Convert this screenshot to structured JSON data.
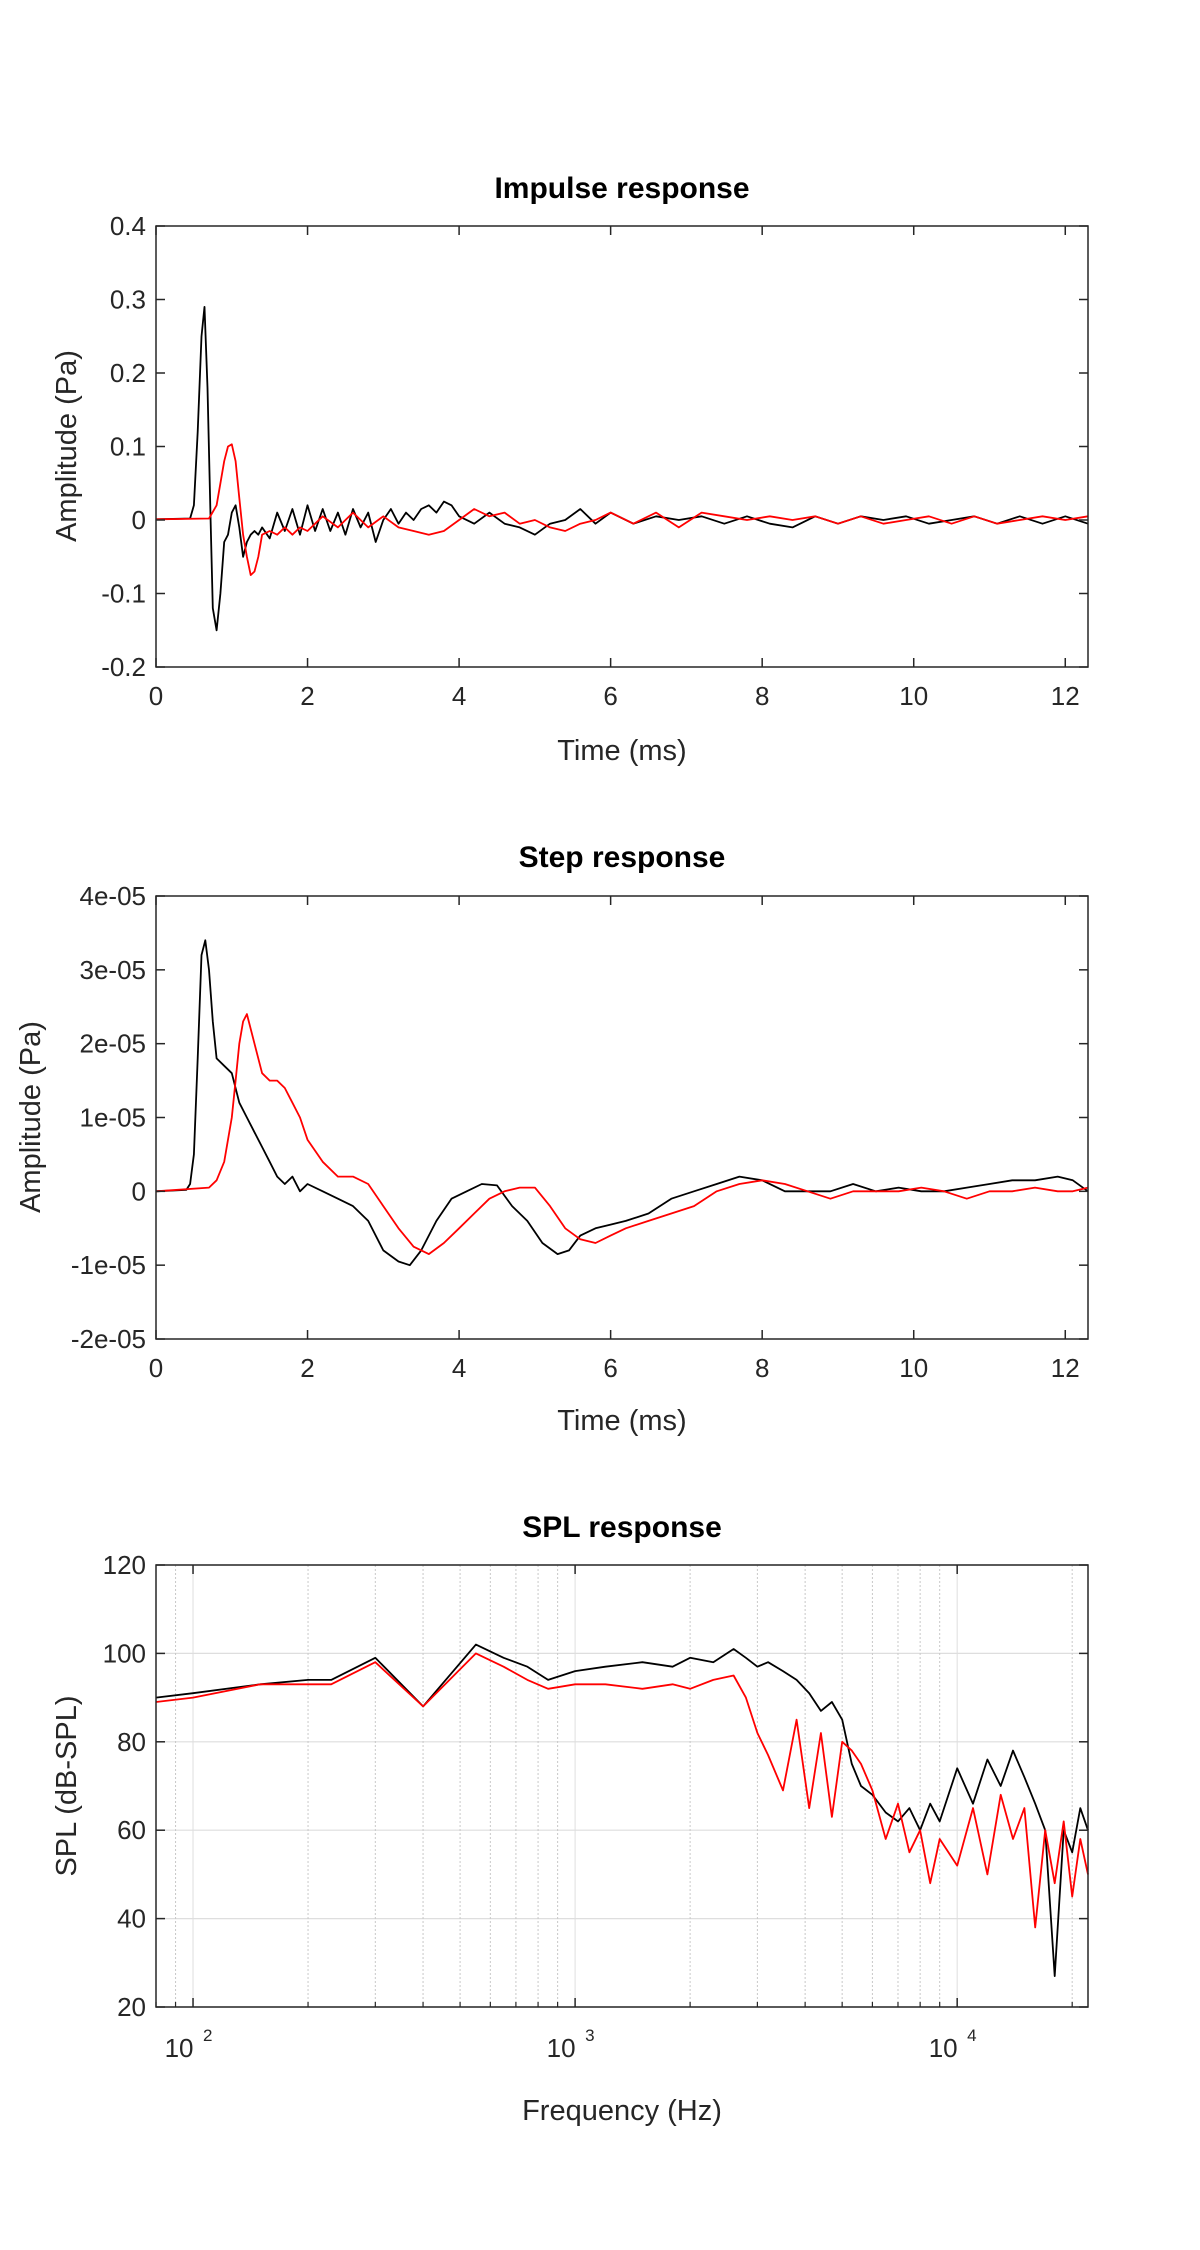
{
  "chart_data": [
    {
      "type": "line",
      "title": "Impulse response",
      "xlabel": "Time (ms)",
      "ylabel": "Amplitude (Pa)",
      "xlim": [
        0,
        12.3
      ],
      "ylim": [
        -0.2,
        0.4
      ],
      "xticks": [
        0,
        2,
        4,
        6,
        8,
        10,
        12
      ],
      "xtick_labels": [
        "0",
        "2",
        "4",
        "6",
        "8",
        "10",
        "12"
      ],
      "yticks": [
        -0.2,
        -0.1,
        0,
        0.1,
        0.2,
        0.3,
        0.4
      ],
      "ytick_labels": [
        "-0.2",
        "-0.1",
        "0",
        "0.1",
        "0.2",
        "0.3",
        "0.4"
      ],
      "grid": false,
      "series": [
        {
          "color": "#000000",
          "x": [
            0,
            0.45,
            0.5,
            0.55,
            0.6,
            0.64,
            0.68,
            0.72,
            0.75,
            0.8,
            0.85,
            0.9,
            0.95,
            1.0,
            1.05,
            1.1,
            1.15,
            1.2,
            1.25,
            1.3,
            1.35,
            1.4,
            1.5,
            1.6,
            1.7,
            1.8,
            1.9,
            2.0,
            2.1,
            2.2,
            2.3,
            2.4,
            2.5,
            2.6,
            2.7,
            2.8,
            2.9,
            3.0,
            3.1,
            3.2,
            3.3,
            3.4,
            3.5,
            3.6,
            3.7,
            3.8,
            3.9,
            4.0,
            4.2,
            4.4,
            4.6,
            4.8,
            5.0,
            5.2,
            5.4,
            5.6,
            5.8,
            6.0,
            6.3,
            6.6,
            6.9,
            7.2,
            7.5,
            7.8,
            8.1,
            8.4,
            8.7,
            9.0,
            9.3,
            9.6,
            9.9,
            10.2,
            10.5,
            10.8,
            11.1,
            11.4,
            11.7,
            12.0,
            12.3
          ],
          "y": [
            0.001,
            0.002,
            0.02,
            0.12,
            0.25,
            0.29,
            0.18,
            0.0,
            -0.12,
            -0.15,
            -0.1,
            -0.03,
            -0.02,
            0.01,
            0.02,
            -0.01,
            -0.05,
            -0.03,
            -0.02,
            -0.015,
            -0.02,
            -0.01,
            -0.025,
            0.01,
            -0.015,
            0.015,
            -0.02,
            0.02,
            -0.015,
            0.015,
            -0.015,
            0.01,
            -0.02,
            0.015,
            -0.01,
            0.01,
            -0.03,
            0.0,
            0.015,
            -0.005,
            0.01,
            0.0,
            0.015,
            0.02,
            0.01,
            0.025,
            0.02,
            0.005,
            -0.005,
            0.01,
            -0.005,
            -0.01,
            -0.02,
            -0.005,
            0.0,
            0.015,
            -0.005,
            0.01,
            -0.005,
            0.005,
            0.0,
            0.005,
            -0.005,
            0.005,
            -0.005,
            -0.01,
            0.005,
            -0.005,
            0.005,
            0.0,
            0.005,
            -0.005,
            0.0,
            0.005,
            -0.005,
            0.005,
            -0.005,
            0.005,
            -0.005
          ]
        },
        {
          "color": "#ff0000",
          "x": [
            0,
            0.7,
            0.8,
            0.85,
            0.9,
            0.95,
            1.0,
            1.05,
            1.1,
            1.15,
            1.2,
            1.25,
            1.3,
            1.35,
            1.4,
            1.5,
            1.6,
            1.7,
            1.8,
            1.9,
            2.0,
            2.2,
            2.4,
            2.6,
            2.8,
            3.0,
            3.2,
            3.4,
            3.6,
            3.8,
            4.0,
            4.2,
            4.4,
            4.6,
            4.8,
            5.0,
            5.2,
            5.4,
            5.6,
            5.8,
            6.0,
            6.3,
            6.6,
            6.9,
            7.2,
            7.5,
            7.8,
            8.1,
            8.4,
            8.7,
            9.0,
            9.3,
            9.6,
            9.9,
            10.2,
            10.5,
            10.8,
            11.1,
            11.4,
            11.7,
            12.0,
            12.3
          ],
          "y": [
            0.001,
            0.002,
            0.02,
            0.05,
            0.08,
            0.1,
            0.103,
            0.08,
            0.03,
            -0.02,
            -0.05,
            -0.075,
            -0.07,
            -0.05,
            -0.02,
            -0.015,
            -0.02,
            -0.01,
            -0.02,
            -0.01,
            -0.015,
            0.005,
            -0.01,
            0.01,
            -0.01,
            0.005,
            -0.01,
            -0.015,
            -0.02,
            -0.015,
            0.0,
            0.015,
            0.005,
            0.01,
            -0.005,
            0.0,
            -0.01,
            -0.015,
            -0.005,
            0.0,
            0.01,
            -0.005,
            0.01,
            -0.01,
            0.01,
            0.005,
            0.0,
            0.005,
            0.0,
            0.005,
            -0.005,
            0.005,
            -0.005,
            0.0,
            0.005,
            -0.005,
            0.005,
            -0.005,
            0.0,
            0.005,
            0.0,
            0.005
          ]
        }
      ]
    },
    {
      "type": "line",
      "title": "Step response",
      "xlabel": "Time (ms)",
      "ylabel": "Amplitude (Pa)",
      "xlim": [
        0,
        12.3
      ],
      "ylim": [
        -2e-05,
        4e-05
      ],
      "xticks": [
        0,
        2,
        4,
        6,
        8,
        10,
        12
      ],
      "xtick_labels": [
        "0",
        "2",
        "4",
        "6",
        "8",
        "10",
        "12"
      ],
      "yticks": [
        -2e-05,
        -1e-05,
        0,
        1e-05,
        2e-05,
        3e-05,
        4e-05
      ],
      "ytick_labels": [
        "-2e-05",
        "-1e-05",
        "0",
        "1e-05",
        "2e-05",
        "3e-05",
        "4e-05"
      ],
      "grid": false,
      "series": [
        {
          "color": "#000000",
          "x": [
            0,
            0.4,
            0.45,
            0.5,
            0.55,
            0.6,
            0.65,
            0.7,
            0.75,
            0.8,
            0.9,
            1.0,
            1.1,
            1.2,
            1.3,
            1.4,
            1.5,
            1.6,
            1.7,
            1.8,
            1.9,
            2.0,
            2.2,
            2.4,
            2.6,
            2.8,
            3.0,
            3.2,
            3.35,
            3.5,
            3.7,
            3.9,
            4.1,
            4.3,
            4.5,
            4.7,
            4.9,
            5.1,
            5.3,
            5.45,
            5.6,
            5.8,
            6.0,
            6.2,
            6.5,
            6.8,
            7.1,
            7.4,
            7.7,
            8.0,
            8.3,
            8.6,
            8.9,
            9.2,
            9.5,
            9.8,
            10.1,
            10.4,
            10.7,
            11.0,
            11.3,
            11.6,
            11.9,
            12.1,
            12.3
          ],
          "y": [
            0.0,
            2e-07,
            1e-06,
            5e-06,
            1.8e-05,
            3.2e-05,
            3.4e-05,
            3e-05,
            2.3e-05,
            1.8e-05,
            1.7e-05,
            1.6e-05,
            1.2e-05,
            1e-05,
            8e-06,
            6e-06,
            4e-06,
            2e-06,
            1e-06,
            2e-06,
            0.0,
            1e-06,
            0.0,
            -1e-06,
            -2e-06,
            -4e-06,
            -8e-06,
            -9.5e-06,
            -1e-05,
            -8e-06,
            -4e-06,
            -1e-06,
            0.0,
            1e-06,
            8e-07,
            -2e-06,
            -4e-06,
            -7e-06,
            -8.5e-06,
            -8e-06,
            -6e-06,
            -5e-06,
            -4.5e-06,
            -4e-06,
            -3e-06,
            -1e-06,
            0.0,
            1e-06,
            2e-06,
            1.5e-06,
            0.0,
            0.0,
            0.0,
            1e-06,
            0.0,
            5e-07,
            0.0,
            0.0,
            5e-07,
            1e-06,
            1.5e-06,
            1.5e-06,
            2e-06,
            1.5e-06,
            0.0
          ]
        },
        {
          "color": "#ff0000",
          "x": [
            0,
            0.7,
            0.8,
            0.9,
            1.0,
            1.05,
            1.1,
            1.15,
            1.2,
            1.3,
            1.4,
            1.5,
            1.6,
            1.7,
            1.8,
            1.9,
            2.0,
            2.2,
            2.4,
            2.6,
            2.8,
            3.0,
            3.2,
            3.4,
            3.6,
            3.8,
            4.0,
            4.2,
            4.4,
            4.6,
            4.8,
            5.0,
            5.2,
            5.4,
            5.6,
            5.8,
            6.0,
            6.2,
            6.5,
            6.8,
            7.1,
            7.4,
            7.7,
            8.0,
            8.3,
            8.6,
            8.9,
            9.2,
            9.5,
            9.8,
            10.1,
            10.4,
            10.7,
            11.0,
            11.3,
            11.6,
            11.9,
            12.1,
            12.3
          ],
          "y": [
            0.0,
            5e-07,
            1.5e-06,
            4e-06,
            1e-05,
            1.5e-05,
            2e-05,
            2.3e-05,
            2.4e-05,
            2e-05,
            1.6e-05,
            1.5e-05,
            1.5e-05,
            1.4e-05,
            1.2e-05,
            1e-05,
            7e-06,
            4e-06,
            2e-06,
            2e-06,
            1e-06,
            -2e-06,
            -5e-06,
            -7.5e-06,
            -8.5e-06,
            -7e-06,
            -5e-06,
            -3e-06,
            -1e-06,
            0.0,
            5e-07,
            5e-07,
            -2e-06,
            -5e-06,
            -6.5e-06,
            -7e-06,
            -6e-06,
            -5e-06,
            -4e-06,
            -3e-06,
            -2e-06,
            0.0,
            1e-06,
            1.5e-06,
            1e-06,
            0.0,
            -1e-06,
            0.0,
            0.0,
            0.0,
            5e-07,
            0.0,
            -1e-06,
            0.0,
            0.0,
            5e-07,
            0.0,
            0.0,
            5e-07
          ]
        }
      ]
    },
    {
      "type": "line",
      "title": "SPL response",
      "xlabel": "Frequency (Hz)",
      "ylabel": "SPL (dB-SPL)",
      "xscale": "log",
      "xlim": [
        80,
        22000
      ],
      "ylim": [
        20,
        120
      ],
      "xticks": [
        100,
        1000,
        10000
      ],
      "xtick_labels": [
        {
          "base": "10",
          "exp": "2"
        },
        {
          "base": "10",
          "exp": "3"
        },
        {
          "base": "10",
          "exp": "4"
        }
      ],
      "yticks": [
        20,
        40,
        60,
        80,
        100,
        120
      ],
      "ytick_labels": [
        "20",
        "40",
        "60",
        "80",
        "100",
        "120"
      ],
      "grid": true,
      "series": [
        {
          "color": "#000000",
          "x": [
            80,
            100,
            150,
            200,
            230,
            300,
            400,
            550,
            650,
            750,
            850,
            1000,
            1200,
            1500,
            1800,
            2000,
            2300,
            2600,
            2800,
            3000,
            3200,
            3500,
            3800,
            4100,
            4400,
            4700,
            5000,
            5300,
            5600,
            6000,
            6500,
            7000,
            7500,
            8000,
            8500,
            9000,
            10000,
            11000,
            12000,
            13000,
            14000,
            15000,
            16000,
            17000,
            18000,
            19000,
            20000,
            21000,
            22000
          ],
          "y": [
            90,
            91,
            93,
            94,
            94,
            99,
            88,
            102,
            99,
            97,
            94,
            96,
            97,
            98,
            97,
            99,
            98,
            101,
            99,
            97,
            98,
            96,
            94,
            91,
            87,
            89,
            85,
            75,
            70,
            68,
            64,
            62,
            65,
            60,
            66,
            62,
            74,
            66,
            76,
            70,
            78,
            72,
            66,
            60,
            27,
            60,
            55,
            65,
            60
          ]
        },
        {
          "color": "#ff0000",
          "x": [
            80,
            100,
            150,
            200,
            230,
            300,
            400,
            550,
            650,
            750,
            850,
            1000,
            1200,
            1500,
            1800,
            2000,
            2300,
            2600,
            2800,
            3000,
            3200,
            3500,
            3800,
            4100,
            4400,
            4700,
            5000,
            5300,
            5600,
            6000,
            6500,
            7000,
            7500,
            8000,
            8500,
            9000,
            10000,
            11000,
            12000,
            13000,
            14000,
            15000,
            16000,
            17000,
            18000,
            19000,
            20000,
            21000,
            22000
          ],
          "y": [
            89,
            90,
            93,
            93,
            93,
            98,
            88,
            100,
            97,
            94,
            92,
            93,
            93,
            92,
            93,
            92,
            94,
            95,
            90,
            82,
            77,
            69,
            85,
            65,
            82,
            63,
            80,
            78,
            75,
            69,
            58,
            66,
            55,
            60,
            48,
            58,
            52,
            65,
            50,
            68,
            58,
            65,
            38,
            60,
            48,
            62,
            45,
            58,
            50
          ]
        }
      ]
    }
  ]
}
